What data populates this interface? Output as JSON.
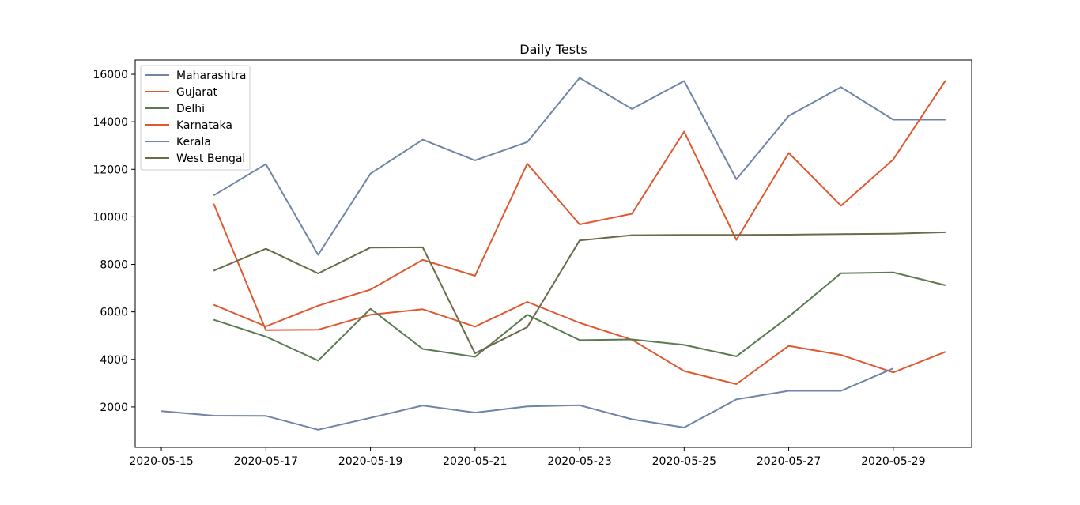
{
  "chart_data": {
    "type": "line",
    "title": "Daily Tests",
    "xlabel": "",
    "ylabel": "",
    "x_tick_labels": [
      "2020-05-15",
      "2020-05-17",
      "2020-05-19",
      "2020-05-21",
      "2020-05-23",
      "2020-05-25",
      "2020-05-27",
      "2020-05-29"
    ],
    "y_tick_labels": [
      "2000",
      "4000",
      "6000",
      "8000",
      "10000",
      "12000",
      "14000",
      "16000"
    ],
    "xlim": [
      "2020-05-14T12:00",
      "2020-05-30T12:00"
    ],
    "ylim": [
      300,
      16600
    ],
    "grid": false,
    "legend_position": "upper left",
    "series": [
      {
        "name": "Maharashtra",
        "color": "#6f84a8",
        "x": [
          "2020-05-16",
          "2020-05-17",
          "2020-05-18",
          "2020-05-19",
          "2020-05-20",
          "2020-05-21",
          "2020-05-22",
          "2020-05-23",
          "2020-05-24",
          "2020-05-25",
          "2020-05-26",
          "2020-05-27",
          "2020-05-28",
          "2020-05-29",
          "2020-05-30"
        ],
        "y": [
          10900,
          12220,
          8400,
          11820,
          13250,
          12380,
          13150,
          15850,
          14540,
          15720,
          11580,
          14250,
          15460,
          14090,
          14090
        ]
      },
      {
        "name": "Gujarat",
        "color": "#e0582f",
        "x": [
          "2020-05-16",
          "2020-05-17",
          "2020-05-18",
          "2020-05-19",
          "2020-05-20",
          "2020-05-21",
          "2020-05-22",
          "2020-05-23",
          "2020-05-24",
          "2020-05-25",
          "2020-05-26",
          "2020-05-27",
          "2020-05-28",
          "2020-05-29",
          "2020-05-30"
        ],
        "y": [
          10560,
          5230,
          5250,
          5880,
          6110,
          5380,
          6420,
          5540,
          4830,
          3510,
          2960,
          4570,
          4190,
          3450,
          4320
        ]
      },
      {
        "name": "Delhi",
        "color": "#5a7a52",
        "x": [
          "2020-05-16",
          "2020-05-17",
          "2020-05-18",
          "2020-05-19",
          "2020-05-20",
          "2020-05-21",
          "2020-05-22",
          "2020-05-23",
          "2020-05-24",
          "2020-05-25",
          "2020-05-26",
          "2020-05-27",
          "2020-05-28",
          "2020-05-29",
          "2020-05-30"
        ],
        "y": [
          5670,
          4960,
          3950,
          6130,
          4440,
          4110,
          5880,
          4810,
          4840,
          4610,
          4130,
          5800,
          7630,
          7660,
          7120
        ]
      },
      {
        "name": "Karnataka",
        "color": "#e0582f",
        "x": [
          "2020-05-16",
          "2020-05-17",
          "2020-05-18",
          "2020-05-19",
          "2020-05-20",
          "2020-05-21",
          "2020-05-22",
          "2020-05-23",
          "2020-05-24",
          "2020-05-25",
          "2020-05-26",
          "2020-05-27",
          "2020-05-28",
          "2020-05-29",
          "2020-05-30"
        ],
        "y": [
          6300,
          5390,
          6260,
          6940,
          8190,
          7520,
          12240,
          9680,
          10130,
          13590,
          9030,
          12690,
          10470,
          12420,
          15740
        ]
      },
      {
        "name": "Kerala",
        "color": "#6f84a8",
        "x": [
          "2020-05-15",
          "2020-05-16",
          "2020-05-17",
          "2020-05-18",
          "2020-05-19",
          "2020-05-20",
          "2020-05-21",
          "2020-05-22",
          "2020-05-23",
          "2020-05-24",
          "2020-05-25",
          "2020-05-26",
          "2020-05-27",
          "2020-05-28",
          "2020-05-29"
        ],
        "y": [
          1820,
          1630,
          1620,
          1040,
          1540,
          2060,
          1760,
          2020,
          2070,
          1480,
          1130,
          2320,
          2680,
          2680,
          3620
        ]
      },
      {
        "name": "West Bengal",
        "color": "#6d6a48",
        "x": [
          "2020-05-16",
          "2020-05-17",
          "2020-05-18",
          "2020-05-19",
          "2020-05-20",
          "2020-05-21",
          "2020-05-22",
          "2020-05-23",
          "2020-05-24",
          "2020-05-25",
          "2020-05-26",
          "2020-05-27",
          "2020-05-28",
          "2020-05-29",
          "2020-05-30"
        ],
        "y": [
          7730,
          8660,
          7620,
          8710,
          8720,
          4260,
          5360,
          9010,
          9230,
          9240,
          9240,
          9250,
          9270,
          9290,
          9350
        ]
      }
    ]
  }
}
